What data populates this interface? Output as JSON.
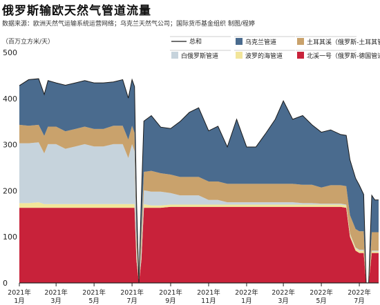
{
  "header": {
    "title": "俄罗斯输欧天然气管道流量",
    "source": "数据来源：欧洲天然气运输系统运营网络；乌克兰天然气公司；国际货币基金组织      制图/程婷",
    "unit": "（百万立方米/天）"
  },
  "colors": {
    "total": "#1a1a1a",
    "ukraine": "#4a6b8e",
    "turkstream": "#c9a26c",
    "belarus": "#c6d3dc",
    "baltic": "#f2e59a",
    "nordstream": "#c8223a",
    "axis": "#222222",
    "grid": "#e4e4e4"
  },
  "chart_data": {
    "type": "area",
    "stacked": true,
    "title": "俄罗斯输欧天然气管道流量",
    "ylabel": "（百万立方米/天）",
    "xlabel": "",
    "ylim": [
      0,
      500
    ],
    "yticks": [
      0,
      100,
      200,
      300,
      400,
      500
    ],
    "xlim": [
      "2021-01-01",
      "2022-08-01"
    ],
    "xticks": [
      {
        "date": "2021-01-01",
        "label": [
          "2021年",
          "1月"
        ]
      },
      {
        "date": "2021-03-01",
        "label": [
          "2021年",
          "3月"
        ]
      },
      {
        "date": "2021-05-01",
        "label": [
          "2021年",
          "5月"
        ]
      },
      {
        "date": "2021-07-01",
        "label": [
          "2021年",
          "7月"
        ]
      },
      {
        "date": "2021-09-01",
        "label": [
          "2021年",
          "9月"
        ]
      },
      {
        "date": "2021-11-01",
        "label": [
          "2021年",
          "11月"
        ]
      },
      {
        "date": "2022-01-01",
        "label": [
          "2022年",
          "1月"
        ]
      },
      {
        "date": "2022-03-01",
        "label": [
          "2022年",
          "3月"
        ]
      },
      {
        "date": "2022-05-01",
        "label": [
          "2022年",
          "5月"
        ]
      },
      {
        "date": "2022-07-01",
        "label": [
          "2022年",
          "7月"
        ]
      }
    ],
    "grid": false,
    "legend_position": "top-right",
    "x": [
      "2021-01-01",
      "2021-01-16",
      "2021-02-01",
      "2021-02-10",
      "2021-02-16",
      "2021-03-01",
      "2021-03-16",
      "2021-04-01",
      "2021-04-16",
      "2021-05-01",
      "2021-05-16",
      "2021-06-01",
      "2021-06-16",
      "2021-06-25",
      "2021-07-01",
      "2021-07-05",
      "2021-07-08",
      "2021-07-12",
      "2021-07-16",
      "2021-07-20",
      "2021-08-01",
      "2021-08-16",
      "2021-09-01",
      "2021-09-16",
      "2021-10-01",
      "2021-10-16",
      "2021-11-01",
      "2021-11-16",
      "2021-12-01",
      "2021-12-16",
      "2022-01-01",
      "2022-01-16",
      "2022-02-01",
      "2022-02-16",
      "2022-03-01",
      "2022-03-16",
      "2022-04-01",
      "2022-04-16",
      "2022-05-01",
      "2022-05-16",
      "2022-06-01",
      "2022-06-10",
      "2022-06-16",
      "2022-06-25",
      "2022-07-01",
      "2022-07-08",
      "2022-07-12",
      "2022-07-16",
      "2022-07-21",
      "2022-07-26",
      "2022-08-01"
    ],
    "series": [
      {
        "name": "北溪一号（俄罗斯-德国管道）",
        "key": "nordstream",
        "values": [
          163,
          163,
          163,
          163,
          163,
          163,
          163,
          163,
          163,
          163,
          163,
          163,
          163,
          163,
          163,
          163,
          50,
          0,
          50,
          163,
          163,
          163,
          165,
          165,
          165,
          165,
          165,
          165,
          165,
          165,
          165,
          165,
          165,
          165,
          165,
          165,
          165,
          165,
          165,
          165,
          165,
          163,
          100,
          70,
          65,
          65,
          0,
          0,
          65,
          65,
          65
        ]
      },
      {
        "name": "波罗的海管道",
        "key": "baltic",
        "values": [
          10,
          10,
          12,
          8,
          8,
          8,
          8,
          8,
          8,
          8,
          8,
          8,
          8,
          8,
          8,
          8,
          8,
          0,
          8,
          8,
          5,
          5,
          5,
          5,
          5,
          5,
          5,
          5,
          5,
          5,
          5,
          5,
          5,
          5,
          5,
          5,
          5,
          5,
          5,
          5,
          5,
          5,
          5,
          5,
          5,
          5,
          0,
          0,
          3,
          3,
          3
        ]
      },
      {
        "name": "白俄罗斯管道",
        "key": "belarus",
        "values": [
          130,
          130,
          130,
          110,
          130,
          130,
          120,
          125,
          130,
          125,
          125,
          130,
          130,
          100,
          130,
          115,
          20,
          0,
          20,
          30,
          30,
          30,
          25,
          20,
          20,
          20,
          10,
          10,
          5,
          5,
          5,
          5,
          5,
          5,
          5,
          5,
          3,
          3,
          2,
          2,
          2,
          2,
          2,
          2,
          2,
          2,
          0,
          0,
          2,
          2,
          2
        ]
      },
      {
        "name": "土耳其溪（俄罗斯-土耳其管道）",
        "key": "turkstream",
        "values": [
          40,
          38,
          38,
          38,
          38,
          38,
          38,
          38,
          38,
          38,
          38,
          40,
          40,
          40,
          40,
          40,
          40,
          0,
          40,
          40,
          45,
          40,
          40,
          40,
          40,
          40,
          40,
          40,
          40,
          40,
          40,
          40,
          40,
          40,
          40,
          40,
          40,
          40,
          35,
          40,
          40,
          40,
          40,
          40,
          40,
          40,
          0,
          0,
          40,
          40,
          40
        ]
      },
      {
        "name": "乌克兰管道",
        "key": "ukraine",
        "values": [
          85,
          100,
          100,
          90,
          100,
          95,
          100,
          100,
          100,
          100,
          100,
          95,
          100,
          90,
          100,
          100,
          70,
          0,
          70,
          110,
          120,
          100,
          100,
          120,
          140,
          150,
          110,
          120,
          80,
          140,
          80,
          80,
          110,
          140,
          180,
          140,
          150,
          130,
          120,
          120,
          110,
          110,
          120,
          110,
          100,
          80,
          0,
          0,
          80,
          70,
          70
        ]
      }
    ],
    "total_line": {
      "name": "总和",
      "values": [
        428,
        441,
        443,
        409,
        439,
        434,
        429,
        434,
        439,
        434,
        434,
        436,
        441,
        401,
        441,
        426,
        188,
        0,
        188,
        351,
        363,
        338,
        335,
        350,
        370,
        380,
        330,
        340,
        295,
        355,
        295,
        295,
        325,
        355,
        395,
        355,
        363,
        343,
        327,
        332,
        322,
        320,
        267,
        227,
        212,
        192,
        0,
        0,
        190,
        180,
        180
      ]
    }
  }
}
